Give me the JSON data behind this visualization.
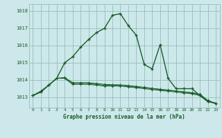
{
  "title": "Graphe pression niveau de la mer (hPa)",
  "background_color": "#cce8ea",
  "grid_color": "#99bbbb",
  "line_color": "#1a5c28",
  "x_labels": [
    "0",
    "1",
    "2",
    "3",
    "4",
    "5",
    "6",
    "7",
    "8",
    "9",
    "10",
    "11",
    "12",
    "13",
    "14",
    "15",
    "16",
    "17",
    "18",
    "19",
    "20",
    "21",
    "22",
    "23"
  ],
  "ylim": [
    1012.4,
    1018.4
  ],
  "yticks": [
    1013,
    1014,
    1015,
    1016,
    1017,
    1018
  ],
  "series": [
    [
      1013.1,
      1013.3,
      1013.7,
      1014.1,
      1015.0,
      1015.35,
      1015.9,
      1016.35,
      1016.75,
      1017.0,
      1017.75,
      1017.85,
      1017.15,
      1016.6,
      1014.9,
      1014.65,
      1016.05,
      1014.1,
      1013.5,
      1013.5,
      1013.5,
      1013.1,
      1012.75,
      1012.65
    ],
    [
      1013.1,
      1013.35,
      1013.7,
      1014.1,
      1014.1,
      1013.75,
      1013.75,
      1013.75,
      1013.7,
      1013.65,
      1013.65,
      1013.65,
      1013.6,
      1013.55,
      1013.5,
      1013.45,
      1013.4,
      1013.35,
      1013.3,
      1013.25,
      1013.2,
      1013.1,
      1012.75,
      1012.65
    ],
    [
      1013.1,
      1013.35,
      1013.7,
      1014.1,
      1014.1,
      1013.8,
      1013.8,
      1013.8,
      1013.75,
      1013.7,
      1013.7,
      1013.7,
      1013.65,
      1013.6,
      1013.55,
      1013.5,
      1013.45,
      1013.4,
      1013.35,
      1013.3,
      1013.25,
      1013.15,
      1012.78,
      1012.65
    ],
    [
      1013.1,
      1013.35,
      1013.7,
      1014.1,
      1014.15,
      1013.85,
      1013.85,
      1013.85,
      1013.8,
      1013.75,
      1013.73,
      1013.72,
      1013.68,
      1013.63,
      1013.58,
      1013.52,
      1013.47,
      1013.42,
      1013.37,
      1013.32,
      1013.27,
      1013.18,
      1012.82,
      1012.65
    ]
  ]
}
